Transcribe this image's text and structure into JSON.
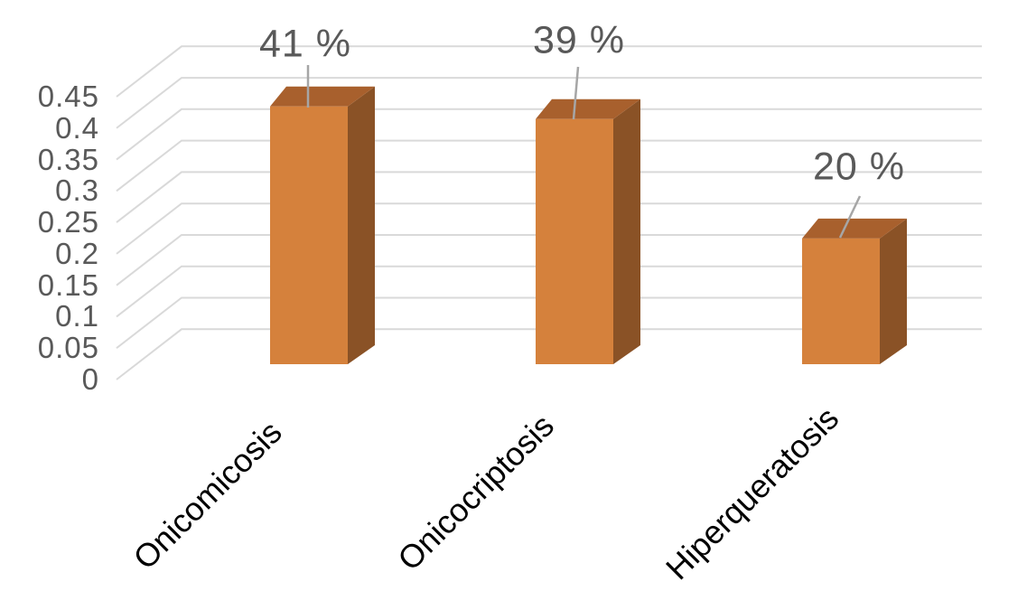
{
  "chart_data": {
    "type": "bar",
    "projection": "3d-column",
    "title": "",
    "categories": [
      "Onicomicosis",
      "Onicocriptosis",
      "Hiperqueratosis"
    ],
    "values": [
      0.41,
      0.39,
      0.2
    ],
    "data_labels": [
      "41 %",
      "39 %",
      "20 %"
    ],
    "yticks": [
      "0",
      "0.05",
      "0.1",
      "0.15",
      "0.2",
      "0.25",
      "0.3",
      "0.35",
      "0.4",
      "0.45"
    ],
    "ylim": [
      0,
      0.45
    ],
    "grid": true,
    "legend": false,
    "colors": {
      "bar_front": "#D5813C",
      "bar_top": "#A8602D",
      "bar_side": "#8A5226",
      "gridline": "#D9D9D9",
      "leader_line": "#A6A6A6",
      "data_label_text": "#595959",
      "ytick_text": "#595959",
      "category_text": "#000000",
      "background": "#FFFFFF"
    }
  }
}
